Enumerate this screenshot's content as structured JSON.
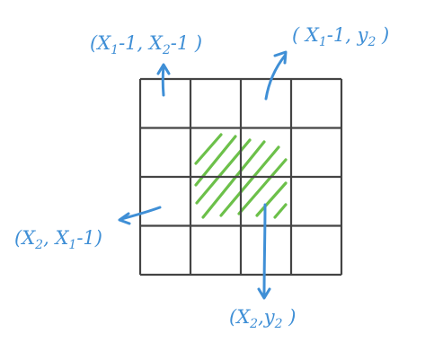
{
  "colors": {
    "grid_stroke": "#444444",
    "hatch": "#6cc04a",
    "annotation": "#3f8fd6",
    "background": "#ffffff"
  },
  "grid": {
    "rows": 4,
    "cols": 4,
    "highlighted_cells": [
      [
        1,
        1
      ],
      [
        1,
        2
      ],
      [
        2,
        1
      ],
      [
        2,
        2
      ]
    ]
  },
  "labels": {
    "top_left": {
      "open": "(",
      "v1": "X",
      "s1": "1",
      "mid": "-1, ",
      "v2": "X",
      "s2": "2",
      "end": "-1 )"
    },
    "top_right": {
      "open": "( ",
      "v1": "X",
      "s1": "1",
      "mid": "-1, ",
      "v2": "y",
      "s2": "2",
      "end": " )"
    },
    "left": {
      "open": "(",
      "v1": "X",
      "s1": "2",
      "mid": ", ",
      "v2": "X",
      "s2": "1",
      "end": "-1)"
    },
    "bottom": {
      "open": "(",
      "v1": "X",
      "s1": "2",
      "mid": ",",
      "v2": "y",
      "s2": "2",
      "end": " )"
    }
  }
}
